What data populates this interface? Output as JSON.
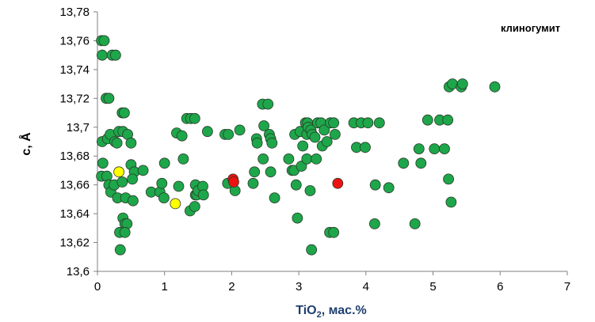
{
  "chart_data": {
    "type": "scatter",
    "title": "",
    "xlabel": "TiO",
    "xlabel_sub": "2",
    "xlabel_rest": ", мас.%",
    "ylabel": "c, Å",
    "annotation": "клиногумит",
    "xlim": [
      0,
      7
    ],
    "ylim": [
      13.6,
      13.78
    ],
    "x_ticks": [
      0,
      1,
      2,
      3,
      4,
      5,
      6,
      7
    ],
    "x_tick_labels": [
      "0",
      "1",
      "2",
      "3",
      "4",
      "5",
      "6",
      "7"
    ],
    "y_ticks": [
      13.6,
      13.62,
      13.64,
      13.66,
      13.68,
      13.7,
      13.72,
      13.74,
      13.76,
      13.78
    ],
    "y_tick_labels": [
      "13,6",
      "13,62",
      "13,64",
      "13,66",
      "13,68",
      "13,7",
      "13,72",
      "13,74",
      "13,76",
      "13,78"
    ],
    "grid": false,
    "legend": "none",
    "colors": {
      "green": "#1ea64a",
      "yellow": "#ffff00",
      "red": "#ee1111",
      "stroke": "#2a3a2a"
    },
    "series": [
      {
        "color_key": "green",
        "points": [
          [
            0.06,
            13.76
          ],
          [
            0.1,
            13.76
          ],
          [
            0.07,
            13.75
          ],
          [
            0.22,
            13.75
          ],
          [
            0.27,
            13.75
          ],
          [
            0.13,
            13.72
          ],
          [
            0.17,
            13.72
          ],
          [
            0.37,
            13.71
          ],
          [
            0.4,
            13.71
          ],
          [
            0.07,
            13.69
          ],
          [
            0.15,
            13.692
          ],
          [
            0.19,
            13.695
          ],
          [
            0.26,
            13.69
          ],
          [
            0.29,
            13.689
          ],
          [
            0.32,
            13.697
          ],
          [
            0.38,
            13.697
          ],
          [
            0.45,
            13.695
          ],
          [
            0.5,
            13.689
          ],
          [
            0.08,
            13.675
          ],
          [
            0.06,
            13.666
          ],
          [
            0.14,
            13.666
          ],
          [
            0.17,
            13.66
          ],
          [
            0.2,
            13.655
          ],
          [
            0.25,
            13.66
          ],
          [
            0.3,
            13.651
          ],
          [
            0.37,
            13.662
          ],
          [
            0.42,
            13.651
          ],
          [
            0.5,
            13.674
          ],
          [
            0.55,
            13.669
          ],
          [
            0.52,
            13.664
          ],
          [
            0.53,
            13.649
          ],
          [
            0.68,
            13.67
          ],
          [
            0.38,
            13.637
          ],
          [
            0.41,
            13.633
          ],
          [
            0.44,
            13.633
          ],
          [
            0.33,
            13.627
          ],
          [
            0.41,
            13.627
          ],
          [
            0.34,
            13.615
          ],
          [
            0.8,
            13.655
          ],
          [
            0.93,
            13.655
          ],
          [
            0.96,
            13.661
          ],
          [
            0.99,
            13.651
          ],
          [
            1.0,
            13.675
          ],
          [
            1.18,
            13.696
          ],
          [
            1.21,
            13.659
          ],
          [
            1.26,
            13.694
          ],
          [
            1.28,
            13.678
          ],
          [
            1.33,
            13.706
          ],
          [
            1.39,
            13.706
          ],
          [
            1.45,
            13.706
          ],
          [
            1.46,
            13.66
          ],
          [
            1.46,
            13.653
          ],
          [
            1.48,
            13.653
          ],
          [
            1.5,
            13.656
          ],
          [
            1.57,
            13.659
          ],
          [
            1.58,
            13.653
          ],
          [
            1.38,
            13.642
          ],
          [
            1.45,
            13.645
          ],
          [
            1.64,
            13.697
          ],
          [
            1.9,
            13.695
          ],
          [
            1.95,
            13.695
          ],
          [
            1.94,
            13.661
          ],
          [
            2.05,
            13.656
          ],
          [
            2.12,
            13.698
          ],
          [
            2.32,
            13.661
          ],
          [
            2.34,
            13.669
          ],
          [
            2.37,
            13.692
          ],
          [
            2.38,
            13.689
          ],
          [
            2.46,
            13.716
          ],
          [
            2.54,
            13.716
          ],
          [
            2.48,
            13.701
          ],
          [
            2.47,
            13.678
          ],
          [
            2.56,
            13.695
          ],
          [
            2.58,
            13.692
          ],
          [
            2.6,
            13.689
          ],
          [
            2.58,
            13.669
          ],
          [
            2.64,
            13.651
          ],
          [
            2.85,
            13.678
          ],
          [
            2.9,
            13.67
          ],
          [
            2.93,
            13.67
          ],
          [
            2.94,
            13.695
          ],
          [
            2.96,
            13.66
          ],
          [
            2.98,
            13.637
          ],
          [
            3.02,
            13.697
          ],
          [
            3.04,
            13.673
          ],
          [
            3.06,
            13.687
          ],
          [
            3.1,
            13.703
          ],
          [
            3.13,
            13.703
          ],
          [
            3.12,
            13.695
          ],
          [
            3.12,
            13.678
          ],
          [
            3.14,
            13.7
          ],
          [
            3.17,
            13.656
          ],
          [
            3.18,
            13.698
          ],
          [
            3.2,
            13.695
          ],
          [
            3.24,
            13.693
          ],
          [
            3.26,
            13.678
          ],
          [
            3.28,
            13.703
          ],
          [
            3.33,
            13.703
          ],
          [
            3.35,
            13.687
          ],
          [
            3.38,
            13.698
          ],
          [
            3.42,
            13.69
          ],
          [
            3.47,
            13.703
          ],
          [
            3.52,
            13.703
          ],
          [
            3.54,
            13.695
          ],
          [
            3.46,
            13.627
          ],
          [
            3.52,
            13.627
          ],
          [
            3.19,
            13.615
          ],
          [
            3.82,
            13.703
          ],
          [
            3.86,
            13.686
          ],
          [
            3.93,
            13.703
          ],
          [
            3.99,
            13.686
          ],
          [
            4.03,
            13.703
          ],
          [
            4.14,
            13.66
          ],
          [
            4.2,
            13.703
          ],
          [
            4.13,
            13.633
          ],
          [
            4.34,
            13.658
          ],
          [
            4.56,
            13.675
          ],
          [
            4.73,
            13.633
          ],
          [
            4.79,
            13.685
          ],
          [
            4.82,
            13.675
          ],
          [
            4.92,
            13.705
          ],
          [
            5.02,
            13.685
          ],
          [
            5.1,
            13.705
          ],
          [
            5.17,
            13.685
          ],
          [
            5.22,
            13.705
          ],
          [
            5.23,
            13.664
          ],
          [
            5.27,
            13.648
          ],
          [
            5.24,
            13.728
          ],
          [
            5.29,
            13.73
          ],
          [
            5.42,
            13.728
          ],
          [
            5.44,
            13.73
          ],
          [
            5.92,
            13.728
          ]
        ]
      },
      {
        "color_key": "yellow",
        "points": [
          [
            0.32,
            13.669
          ],
          [
            1.16,
            13.647
          ]
        ]
      },
      {
        "color_key": "red",
        "points": [
          [
            2.02,
            13.664
          ],
          [
            2.03,
            13.662
          ],
          [
            3.58,
            13.661
          ]
        ]
      }
    ]
  }
}
